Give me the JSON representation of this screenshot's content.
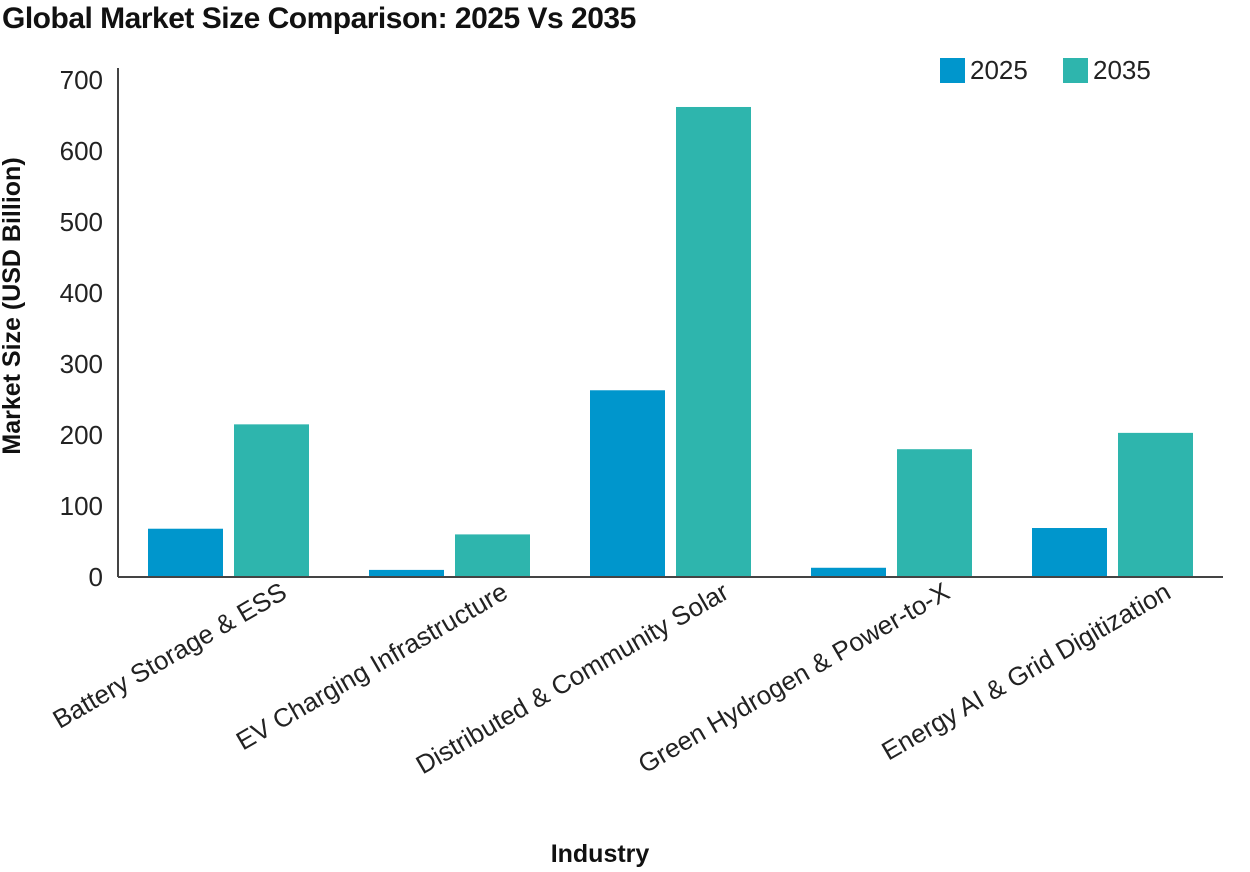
{
  "chart_data": {
    "type": "bar",
    "title": "Global Market Size Comparison: 2025 Vs 2035",
    "xlabel": "Industry",
    "ylabel": "Market Size (USD Billion)",
    "ylim": [
      0,
      700
    ],
    "yticks": [
      0,
      100,
      200,
      300,
      400,
      500,
      600,
      700
    ],
    "grid": false,
    "legend_position": "top-right",
    "categories": [
      "Battery Storage & ESS",
      "EV Charging Infrastructure",
      "Distributed & Community Solar",
      "Green Hydrogen & Power-to-X",
      "Energy AI & Grid Digitization"
    ],
    "series": [
      {
        "name": "2025",
        "color": "#0096CC",
        "values": [
          68,
          10,
          263,
          13,
          69
        ]
      },
      {
        "name": "2035",
        "color": "#2EB5AD",
        "values": [
          215,
          60,
          662,
          180,
          203
        ]
      }
    ]
  }
}
